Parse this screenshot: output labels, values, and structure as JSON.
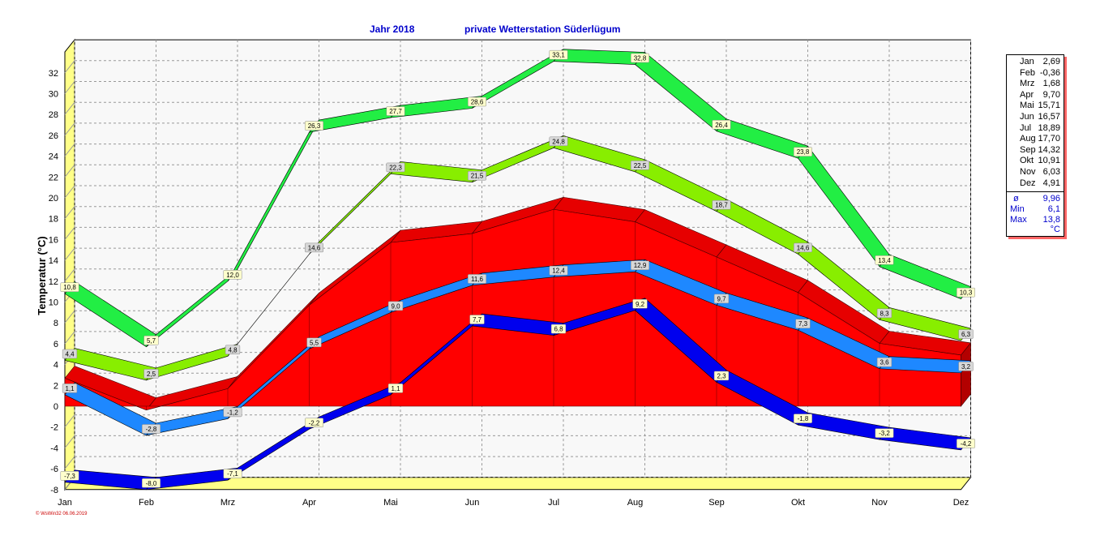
{
  "header": {
    "year_label": "Jahr  2018",
    "station_label": "private Wetterstation Süderlügum"
  },
  "footer": {
    "credit": "© WsWin32  06.06.2019"
  },
  "chart_data": {
    "type": "area",
    "title": "private Wetterstation Süderlügum",
    "ylabel": "Temperatur  (°C)",
    "ylim": [
      -8,
      34
    ],
    "yticks": [
      -8,
      -6,
      -4,
      -2,
      0,
      2,
      4,
      6,
      8,
      10,
      12,
      14,
      16,
      18,
      20,
      22,
      24,
      26,
      28,
      30,
      32
    ],
    "categories": [
      "Jan",
      "Feb",
      "Mrz",
      "Apr",
      "Mai",
      "Jun",
      "Jul",
      "Aug",
      "Sep",
      "Okt",
      "Nov",
      "Dez"
    ],
    "grid": true,
    "series": [
      {
        "values": [
          10.8,
          5.7,
          12.0,
          26.3,
          27.7,
          28.6,
          33.1,
          32.8,
          26.4,
          23.8,
          13.4,
          10.3
        ],
        "labels": [
          "10,8",
          "5,7",
          "12,0",
          "26,3",
          "27,7",
          "28,6",
          "33,1",
          "32,8",
          "26,4",
          "23,8",
          "13,4",
          "10,3"
        ],
        "color": "#22ee44",
        "style": "ribbon",
        "label_color": "#ffffcc"
      },
      {
        "values": [
          4.4,
          2.5,
          4.8,
          14.6,
          22.3,
          21.5,
          24.8,
          22.5,
          18.7,
          14.6,
          8.3,
          6.3
        ],
        "labels": [
          "4,4",
          "2,5",
          "4,8",
          "14,6",
          "22,3",
          "21,5",
          "24,8",
          "22,5",
          "18,7",
          "14,6",
          "8,3",
          "6,3"
        ],
        "color": "#88ee00",
        "style": "ribbon",
        "label_color": "#d8d8d8"
      },
      {
        "values": [
          2.69,
          -0.36,
          1.68,
          9.7,
          15.71,
          16.57,
          18.89,
          17.7,
          14.32,
          10.91,
          6.03,
          4.91
        ],
        "color": "#ff0000",
        "style": "area"
      },
      {
        "values": [
          1.1,
          -2.8,
          -1.2,
          5.5,
          9.0,
          11.6,
          12.4,
          12.9,
          9.7,
          7.3,
          3.6,
          3.2
        ],
        "labels": [
          "1,1",
          "-2,8",
          "-1,2",
          "5,5",
          "9,0",
          "11,6",
          "12,4",
          "12,9",
          "9,7",
          "7,3",
          "3,6",
          "3,2"
        ],
        "color": "#1e88ff",
        "style": "ribbon",
        "label_color": "#d8d8d8"
      },
      {
        "values": [
          -7.3,
          -8.0,
          -7.1,
          -2.2,
          1.1,
          7.7,
          6.8,
          9.2,
          2.3,
          -1.8,
          -3.2,
          -4.2
        ],
        "labels": [
          "-7,3",
          "-8,0",
          "-7,1",
          "-2,2",
          "1,1",
          "7,7",
          "6,8",
          "9,2",
          "2,3",
          "-1,8",
          "-3,2",
          "-4,2"
        ],
        "color": "#0000ee",
        "style": "ribbon",
        "label_color": "#ffffcc"
      }
    ]
  },
  "legend": {
    "months": [
      {
        "month": "Jan",
        "value": "2,69"
      },
      {
        "month": "Feb",
        "value": "-0,36"
      },
      {
        "month": "Mrz",
        "value": "1,68"
      },
      {
        "month": "Apr",
        "value": "9,70"
      },
      {
        "month": "Mai",
        "value": "15,71"
      },
      {
        "month": "Jun",
        "value": "16,57"
      },
      {
        "month": "Jul",
        "value": "18,89"
      },
      {
        "month": "Aug",
        "value": "17,70"
      },
      {
        "month": "Sep",
        "value": "14,32"
      },
      {
        "month": "Okt",
        "value": "10,91"
      },
      {
        "month": "Nov",
        "value": "6,03"
      },
      {
        "month": "Dez",
        "value": "4,91"
      }
    ],
    "stats": [
      {
        "label": "ø",
        "value": "9,96"
      },
      {
        "label": "Min",
        "value": "6,1"
      },
      {
        "label": "Max",
        "value": "13,8"
      }
    ],
    "unit": "°C"
  }
}
